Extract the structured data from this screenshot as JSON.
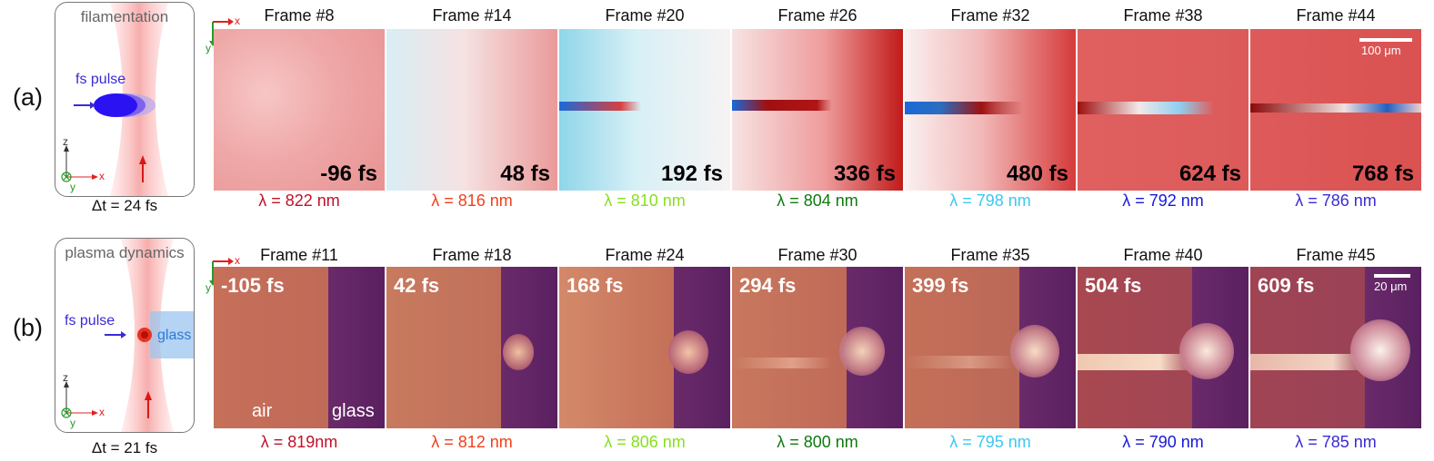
{
  "panel_a": {
    "label": "(a)",
    "schematic_title": "filamentation",
    "pulse_label": "fs pulse",
    "delta_t": "Δt = 24 fs",
    "axis_z": "z",
    "axis_x": "x",
    "axis_y": "y",
    "img_axis_x": "x",
    "img_axis_y": "y",
    "scalebar": "100 μm",
    "frames": [
      {
        "title": "Frame #8",
        "time": "-96 fs",
        "lambda": "λ = 822 nm",
        "color": "#c0102a"
      },
      {
        "title": "Frame #14",
        "time": "48 fs",
        "lambda": "λ = 816 nm",
        "color": "#f0401a"
      },
      {
        "title": "Frame #20",
        "time": "192 fs",
        "lambda": "λ = 810 nm",
        "color": "#86e020"
      },
      {
        "title": "Frame #26",
        "time": "336 fs",
        "lambda": "λ = 804 nm",
        "color": "#0e7a0e"
      },
      {
        "title": "Frame #32",
        "time": "480 fs",
        "lambda": "λ = 798 nm",
        "color": "#3cc8f0"
      },
      {
        "title": "Frame #38",
        "time": "624 fs",
        "lambda": "λ = 792 nm",
        "color": "#1818d8"
      },
      {
        "title": "Frame #44",
        "time": "768 fs",
        "lambda": "λ = 786 nm",
        "color": "#3a2ad6"
      }
    ]
  },
  "panel_b": {
    "label": "(b)",
    "schematic_title": "plasma dynamics",
    "pulse_label": "fs pulse",
    "glass_label": "glass",
    "delta_t": "Δt = 21 fs",
    "axis_z": "z",
    "axis_x": "x",
    "axis_y": "y",
    "img_axis_x": "x",
    "img_axis_y": "y",
    "air_label": "air",
    "glass_overlay": "glass",
    "scalebar": "20 μm",
    "frames": [
      {
        "title": "Frame #11",
        "time": "-105 fs",
        "lambda": "λ = 819nm",
        "color": "#c0102a"
      },
      {
        "title": "Frame #18",
        "time": "42 fs",
        "lambda": "λ = 812 nm",
        "color": "#f0401a"
      },
      {
        "title": "Frame #24",
        "time": "168 fs",
        "lambda": "λ = 806 nm",
        "color": "#86e020"
      },
      {
        "title": "Frame #30",
        "time": "294 fs",
        "lambda": "λ = 800 nm",
        "color": "#0e7a0e"
      },
      {
        "title": "Frame #35",
        "time": "399 fs",
        "lambda": "λ = 795 nm",
        "color": "#3cc8f0"
      },
      {
        "title": "Frame #40",
        "time": "504 fs",
        "lambda": "λ = 790 nm",
        "color": "#1818d8"
      },
      {
        "title": "Frame #45",
        "time": "609 fs",
        "lambda": "λ = 785 nm",
        "color": "#3a2ad6"
      }
    ]
  }
}
